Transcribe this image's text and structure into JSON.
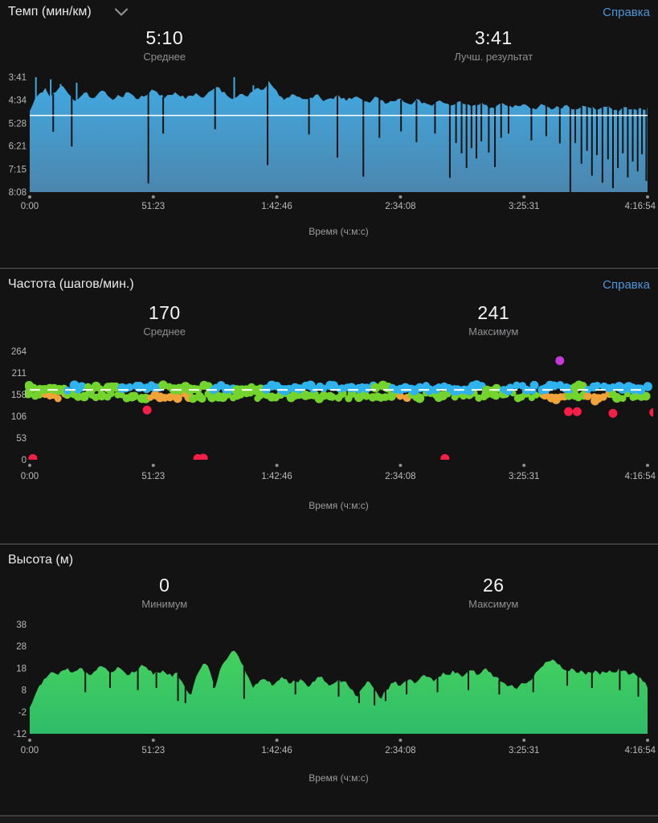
{
  "page": {
    "bg": "#131314"
  },
  "x_axis": {
    "ticks": [
      "0:00",
      "51:23",
      "1:42:46",
      "2:34:08",
      "3:25:31",
      "4:16:54"
    ],
    "title": "Время (ч:м:с)"
  },
  "sections": {
    "pace": {
      "title": "Темп (мин/км)",
      "help": "Справка",
      "stats": [
        {
          "value": "5:10",
          "label": "Среднее"
        },
        {
          "value": "3:41",
          "label": "Лучш. результат"
        }
      ]
    },
    "cadence": {
      "title": "Частота (шагов/мин.)",
      "help": "Справка",
      "stats": [
        {
          "value": "170",
          "label": "Среднее"
        },
        {
          "value": "241",
          "label": "Максимум"
        }
      ]
    },
    "elevation": {
      "title": "Высота (м)",
      "stats": [
        {
          "value": "0",
          "label": "Минимум"
        },
        {
          "value": "26",
          "label": "Максимум"
        }
      ]
    }
  },
  "colors": {
    "link": "#4b96d6",
    "pace_fill_top": "#41a9e0",
    "pace_fill_bottom": "#4b86ae",
    "elev_fill_top": "#44d15d",
    "elev_fill_bottom": "#2fbc69",
    "cadence_blue": "#2fb3ee",
    "cadence_green": "#72d42c",
    "cadence_orange": "#f0a339",
    "cadence_red": "#f81e47",
    "cadence_magenta": "#c438d4",
    "avg_line": "#ffffff",
    "axis_text": "#b9babc",
    "axis_title": "#9b9c9e",
    "divider": "#3b3c3e"
  },
  "chart_data": [
    {
      "type": "area",
      "name": "pace",
      "title": "Темп (мин/км)",
      "xlabel": "Время (ч:м:с)",
      "x_ticks": [
        "0:00",
        "51:23",
        "1:42:46",
        "2:34:08",
        "3:25:31",
        "4:16:54"
      ],
      "y_ticks": [
        {
          "label": "3:41",
          "v": 221
        },
        {
          "label": "4:34",
          "v": 274
        },
        {
          "label": "5:28",
          "v": 328
        },
        {
          "label": "6:21",
          "v": 381
        },
        {
          "label": "7:15",
          "v": 435
        },
        {
          "label": "8:08",
          "v": 488
        }
      ],
      "y_top_value": 221,
      "y_bottom_value": 488,
      "y_axis_inverted": true,
      "average_seconds": 310,
      "average_label": "5:10",
      "best_seconds": 221,
      "best_label": "3:41",
      "series_pace_seconds": [
        300,
        272,
        258,
        246,
        268,
        256,
        240,
        252,
        266,
        276,
        264,
        256,
        270,
        262,
        252,
        264,
        274,
        262,
        268,
        256,
        264,
        272,
        266,
        258,
        252,
        264,
        270,
        262,
        256,
        266,
        272,
        264,
        258,
        268,
        262,
        252,
        244,
        256,
        264,
        272,
        266,
        260,
        266,
        254,
        246,
        250,
        230,
        246,
        264,
        274,
        268,
        262,
        267,
        272,
        268,
        262,
        269,
        274,
        270,
        264,
        271,
        276,
        272,
        266,
        273,
        278,
        274,
        268,
        275,
        281,
        277,
        271,
        278,
        283,
        279,
        273,
        280,
        285,
        281,
        275,
        282,
        287,
        283,
        277,
        284,
        289,
        285,
        279,
        286,
        291,
        287,
        281,
        288,
        292,
        288,
        284,
        289,
        293,
        290,
        286,
        291,
        294,
        291,
        287,
        292,
        295,
        292,
        289,
        293,
        296,
        293,
        290,
        294,
        297,
        294,
        291,
        295,
        298,
        295,
        292
      ],
      "spikes": [
        {
          "x": 0.01,
          "v": 221
        },
        {
          "x": 0.034,
          "v": 226
        },
        {
          "x": 0.05,
          "v": 237
        },
        {
          "x": 0.076,
          "v": 234
        },
        {
          "x": 0.331,
          "v": 221
        },
        {
          "x": 0.362,
          "v": 240
        },
        {
          "x": 0.038,
          "v": 348
        },
        {
          "x": 0.068,
          "v": 382
        },
        {
          "x": 0.192,
          "v": 468
        },
        {
          "x": 0.216,
          "v": 352
        },
        {
          "x": 0.3,
          "v": 342
        },
        {
          "x": 0.385,
          "v": 425
        },
        {
          "x": 0.452,
          "v": 354
        },
        {
          "x": 0.498,
          "v": 408
        },
        {
          "x": 0.54,
          "v": 452
        },
        {
          "x": 0.566,
          "v": 362
        },
        {
          "x": 0.601,
          "v": 347
        },
        {
          "x": 0.626,
          "v": 372
        },
        {
          "x": 0.656,
          "v": 352
        },
        {
          "x": 0.68,
          "v": 455
        },
        {
          "x": 0.69,
          "v": 374
        },
        {
          "x": 0.699,
          "v": 398
        },
        {
          "x": 0.707,
          "v": 432
        },
        {
          "x": 0.715,
          "v": 386
        },
        {
          "x": 0.723,
          "v": 410
        },
        {
          "x": 0.731,
          "v": 370
        },
        {
          "x": 0.743,
          "v": 396
        },
        {
          "x": 0.753,
          "v": 430
        },
        {
          "x": 0.763,
          "v": 362
        },
        {
          "x": 0.775,
          "v": 352
        },
        {
          "x": 0.812,
          "v": 368
        },
        {
          "x": 0.836,
          "v": 358
        },
        {
          "x": 0.858,
          "v": 375
        },
        {
          "x": 0.875,
          "v": 488
        },
        {
          "x": 0.883,
          "v": 374
        },
        {
          "x": 0.893,
          "v": 422
        },
        {
          "x": 0.902,
          "v": 392
        },
        {
          "x": 0.91,
          "v": 450
        },
        {
          "x": 0.918,
          "v": 402
        },
        {
          "x": 0.927,
          "v": 466
        },
        {
          "x": 0.936,
          "v": 412
        },
        {
          "x": 0.944,
          "v": 479
        },
        {
          "x": 0.952,
          "v": 432
        },
        {
          "x": 0.96,
          "v": 398
        },
        {
          "x": 0.968,
          "v": 454
        },
        {
          "x": 0.976,
          "v": 417
        },
        {
          "x": 0.984,
          "v": 440
        },
        {
          "x": 0.991,
          "v": 400
        },
        {
          "x": 0.998,
          "v": 462
        }
      ]
    },
    {
      "type": "scatter",
      "name": "cadence",
      "title": "Частота (шагов/мин.)",
      "xlabel": "Время (ч:м:с)",
      "x_ticks": [
        "0:00",
        "51:23",
        "1:42:46",
        "2:34:08",
        "3:25:31",
        "4:16:54"
      ],
      "y_ticks": [
        {
          "label": "264",
          "v": 264
        },
        {
          "label": "211",
          "v": 211
        },
        {
          "label": "158",
          "v": 158
        },
        {
          "label": "106",
          "v": 106
        },
        {
          "label": "53",
          "v": 53
        },
        {
          "label": "0",
          "v": 0
        }
      ],
      "y_top_value": 264,
      "y_bottom_value": 0,
      "average": 170,
      "max": 241,
      "band": {
        "top_row_value": 172,
        "bottom_row_value": 157
      },
      "top_segments": [
        {
          "from": 0.0,
          "to": 0.055,
          "color": "green"
        },
        {
          "from": 0.055,
          "to": 0.09,
          "color": "blue"
        },
        {
          "from": 0.09,
          "to": 0.145,
          "color": "green"
        },
        {
          "from": 0.145,
          "to": 0.215,
          "color": "blue"
        },
        {
          "from": 0.215,
          "to": 0.295,
          "color": "green"
        },
        {
          "from": 0.295,
          "to": 0.335,
          "color": "blue"
        },
        {
          "from": 0.335,
          "to": 0.375,
          "color": "green"
        },
        {
          "from": 0.375,
          "to": 0.56,
          "color": "blue"
        },
        {
          "from": 0.56,
          "to": 0.585,
          "color": "green"
        },
        {
          "from": 0.585,
          "to": 0.74,
          "color": "blue"
        },
        {
          "from": 0.74,
          "to": 0.76,
          "color": "green"
        },
        {
          "from": 0.76,
          "to": 0.875,
          "color": "blue"
        },
        {
          "from": 0.875,
          "to": 0.9,
          "color": "green"
        },
        {
          "from": 0.9,
          "to": 1.0,
          "color": "blue"
        }
      ],
      "orange_patches": [
        [
          0.02,
          0.06
        ],
        [
          0.195,
          0.26
        ],
        [
          0.595,
          0.615
        ],
        [
          0.83,
          0.87
        ],
        [
          0.9,
          0.94
        ]
      ],
      "outliers": [
        {
          "x": 0.005,
          "v": 3,
          "color": "red"
        },
        {
          "x": 0.19,
          "v": 121,
          "color": "red"
        },
        {
          "x": 0.272,
          "v": 3,
          "color": "red"
        },
        {
          "x": 0.281,
          "v": 4,
          "color": "red"
        },
        {
          "x": 0.672,
          "v": 3,
          "color": "red"
        },
        {
          "x": 0.852,
          "v": 146,
          "color": "orange"
        },
        {
          "x": 0.858,
          "v": 241,
          "color": "magenta"
        },
        {
          "x": 0.872,
          "v": 117,
          "color": "red"
        },
        {
          "x": 0.886,
          "v": 117,
          "color": "red"
        },
        {
          "x": 0.915,
          "v": 143,
          "color": "orange"
        },
        {
          "x": 0.944,
          "v": 113,
          "color": "red"
        },
        {
          "x": 1.01,
          "v": 115,
          "color": "red"
        }
      ]
    },
    {
      "type": "area",
      "name": "elevation",
      "title": "Высота (м)",
      "xlabel": "Время (ч:м:с)",
      "x_ticks": [
        "0:00",
        "51:23",
        "1:42:46",
        "2:34:08",
        "3:25:31",
        "4:16:54"
      ],
      "y_ticks": [
        {
          "label": "38",
          "v": 38
        },
        {
          "label": "28",
          "v": 28
        },
        {
          "label": "18",
          "v": 18
        },
        {
          "label": "8",
          "v": 8
        },
        {
          "label": "-2",
          "v": -2
        },
        {
          "label": "-12",
          "v": -12
        }
      ],
      "y_top_value": 38,
      "y_bottom_value": -12,
      "min": 0,
      "max": 26,
      "series_meters": [
        0,
        5,
        10,
        13,
        15,
        16,
        15,
        17,
        18,
        16,
        17,
        18,
        16,
        15,
        17,
        19,
        18,
        16,
        17,
        18,
        16,
        15,
        16,
        18,
        19,
        17,
        15,
        16,
        17,
        15,
        14,
        16,
        12,
        8,
        6,
        14,
        18,
        20,
        16,
        9,
        17,
        21,
        24,
        26,
        23,
        19,
        14,
        9,
        11,
        13,
        12,
        10,
        12,
        14,
        13,
        11,
        12,
        13,
        11,
        10,
        12,
        14,
        12,
        10,
        11,
        13,
        12,
        10,
        8,
        5,
        9,
        12,
        10,
        7,
        4,
        8,
        11,
        12,
        10,
        12,
        13,
        11,
        13,
        15,
        14,
        12,
        14,
        16,
        15,
        17,
        16,
        14,
        16,
        17,
        15,
        16,
        18,
        16,
        14,
        12,
        11,
        10,
        9,
        10,
        11,
        12,
        14,
        17,
        19,
        21,
        22,
        20,
        18,
        17,
        18,
        16,
        17,
        15,
        16,
        17,
        15,
        16,
        17,
        16,
        18,
        17,
        15,
        16,
        14,
        12,
        9
      ],
      "spikes": [
        {
          "x": 0.09,
          "v": 7
        },
        {
          "x": 0.13,
          "v": 9
        },
        {
          "x": 0.175,
          "v": 8
        },
        {
          "x": 0.205,
          "v": 9
        },
        {
          "x": 0.24,
          "v": 3
        },
        {
          "x": 0.252,
          "v": 2
        },
        {
          "x": 0.298,
          "v": 9
        },
        {
          "x": 0.347,
          "v": 4
        },
        {
          "x": 0.43,
          "v": 6
        },
        {
          "x": 0.5,
          "v": 5
        },
        {
          "x": 0.533,
          "v": 2
        },
        {
          "x": 0.558,
          "v": 1
        },
        {
          "x": 0.576,
          "v": 3
        },
        {
          "x": 0.61,
          "v": 6
        },
        {
          "x": 0.66,
          "v": 7
        },
        {
          "x": 0.71,
          "v": 8
        },
        {
          "x": 0.76,
          "v": 6
        },
        {
          "x": 0.815,
          "v": 7
        },
        {
          "x": 0.87,
          "v": 10
        },
        {
          "x": 0.91,
          "v": 9
        },
        {
          "x": 0.955,
          "v": 8
        },
        {
          "x": 0.985,
          "v": 5
        }
      ]
    }
  ]
}
